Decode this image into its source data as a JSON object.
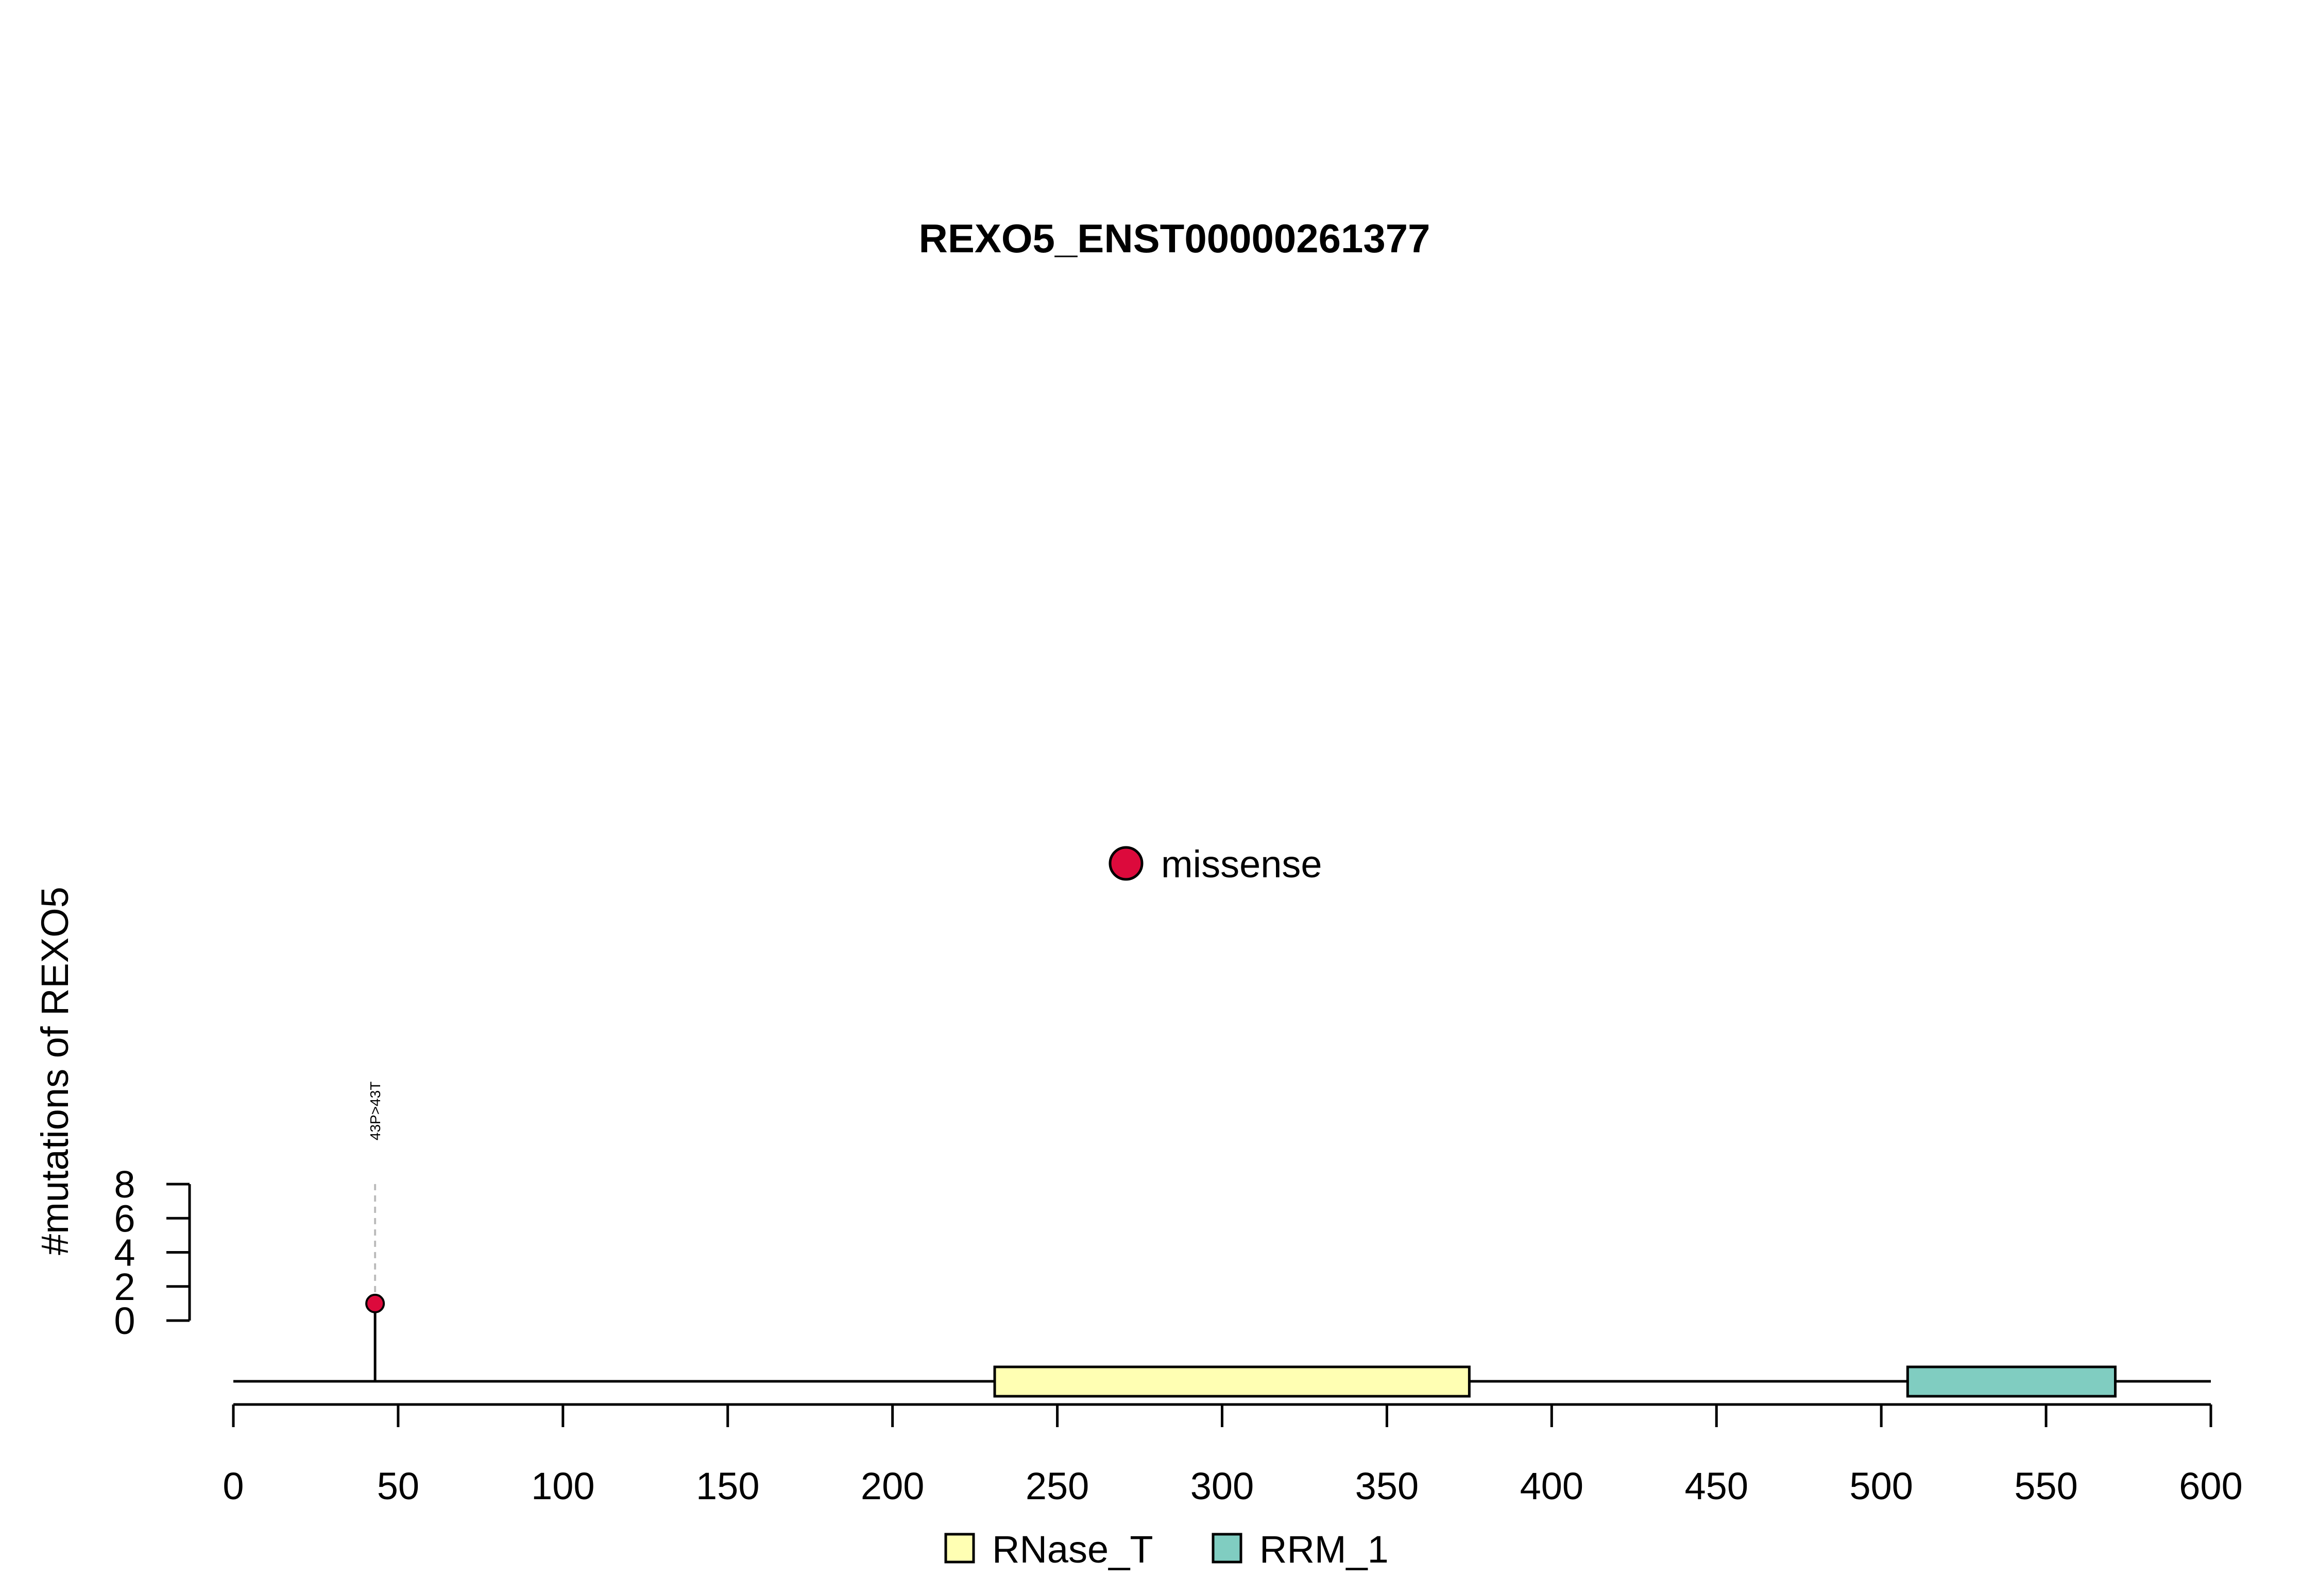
{
  "chart_data": {
    "type": "lollipop",
    "title": "REXO5_ENST00000261377",
    "ylabel": "#mutations of REXO5",
    "xlim": [
      0,
      600
    ],
    "x_ticks": [
      0,
      50,
      100,
      150,
      200,
      250,
      300,
      350,
      400,
      450,
      500,
      550,
      600
    ],
    "ylim": [
      0,
      8
    ],
    "y_ticks": [
      0,
      2,
      4,
      6,
      8
    ],
    "mutations": [
      {
        "position": 43,
        "count": 1,
        "label": "43P>43T",
        "type": "missense"
      }
    ],
    "domains": [
      {
        "name": "RNase_T",
        "start": 231,
        "end": 375,
        "color": "#FFFFB3"
      },
      {
        "name": "RRM_1",
        "start": 508,
        "end": 571,
        "color": "#80CDC1"
      }
    ],
    "mutation_legend": [
      {
        "label": "missense",
        "color": "#DC0A3C"
      }
    ],
    "domain_legend": [
      {
        "label": "RNase_T",
        "color": "#FFFFB3"
      },
      {
        "label": "RRM_1",
        "color": "#80CDC1"
      }
    ],
    "grid": false
  }
}
